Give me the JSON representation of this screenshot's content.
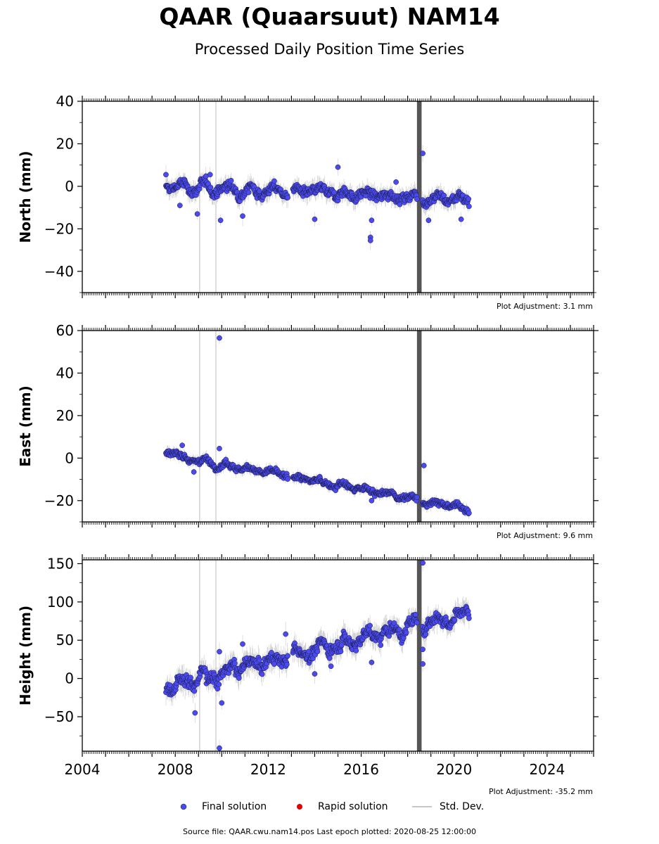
{
  "title": "QAAR (Quaarsuut) NAM14",
  "subtitle": "Processed Daily Position Time Series",
  "legend": {
    "final": "Final solution",
    "rapid": "Rapid solution",
    "stddev": "Std. Dev."
  },
  "source": "Source file: QAAR.cwu.nam14.pos  Last epoch plotted: 2020-08-25 12:00:00",
  "colors": {
    "final": "#4a4af0",
    "rapid": "#e00000",
    "stddev": "#c8c8c8",
    "gap": "#555555"
  },
  "chart_data": [
    {
      "type": "scatter",
      "ylabel": "North (mm)",
      "xlim": [
        2004,
        2026
      ],
      "ylim": [
        -50,
        40
      ],
      "yticks": [
        40,
        20,
        0,
        -20,
        -40
      ],
      "xticks": [
        2004,
        2008,
        2012,
        2016,
        2020,
        2024
      ],
      "adjustment": "Plot Adjustment: 3.1 mm",
      "trend_start": [
        2007.6,
        0
      ],
      "trend_end": [
        2020.65,
        -6
      ],
      "noise": 2.5,
      "outliers": [
        [
          2007.6,
          5.5
        ],
        [
          2008.2,
          -9
        ],
        [
          2008.95,
          -13
        ],
        [
          2009.5,
          5.5
        ],
        [
          2009.95,
          -16
        ],
        [
          2010.9,
          -14
        ],
        [
          2015.0,
          9
        ],
        [
          2016.4,
          -24
        ],
        [
          2016.4,
          -25.5
        ],
        [
          2016.45,
          -16
        ],
        [
          2014.0,
          -15.5
        ],
        [
          2018.65,
          15.5
        ],
        [
          2018.9,
          -16
        ],
        [
          2020.3,
          -15.5
        ],
        [
          2017.5,
          2
        ]
      ],
      "gap_band": [
        2018.4,
        2018.6
      ]
    },
    {
      "type": "scatter",
      "ylabel": "East (mm)",
      "xlim": [
        2004,
        2026
      ],
      "ylim": [
        -30,
        60
      ],
      "yticks": [
        60,
        40,
        20,
        0,
        -20
      ],
      "xticks": [
        2004,
        2008,
        2012,
        2016,
        2020,
        2024
      ],
      "adjustment": "Plot Adjustment: 9.6 mm",
      "trend_start": [
        2007.6,
        2
      ],
      "trend_end": [
        2020.65,
        -24
      ],
      "noise": 1.5,
      "outliers": [
        [
          2009.9,
          56.5
        ],
        [
          2009.9,
          4.5
        ],
        [
          2008.8,
          -6.5
        ],
        [
          2018.7,
          -3.5
        ],
        [
          2016.45,
          -20
        ],
        [
          2008.3,
          6
        ]
      ],
      "gap_band": [
        2018.4,
        2018.6
      ]
    },
    {
      "type": "scatter",
      "ylabel": "Height (mm)",
      "xlim": [
        2004,
        2026
      ],
      "ylim": [
        -95,
        155
      ],
      "yticks": [
        150,
        100,
        50,
        0,
        -50
      ],
      "xticks": [
        2004,
        2008,
        2012,
        2016,
        2020,
        2024
      ],
      "adjustment": "Plot Adjustment: -35.2 mm",
      "trend_start": [
        2007.6,
        -10
      ],
      "trend_end": [
        2020.65,
        88
      ],
      "noise": 9,
      "outliers": [
        [
          2008.85,
          -45
        ],
        [
          2009.9,
          -91
        ],
        [
          2009.9,
          35
        ],
        [
          2010.0,
          -32
        ],
        [
          2018.65,
          151
        ],
        [
          2018.65,
          38
        ],
        [
          2018.65,
          19
        ],
        [
          2014.0,
          6
        ],
        [
          2014.7,
          16
        ],
        [
          2010.9,
          45
        ],
        [
          2016.45,
          21
        ],
        [
          2012.75,
          58
        ]
      ],
      "gap_band": [
        2018.4,
        2018.6
      ]
    }
  ]
}
